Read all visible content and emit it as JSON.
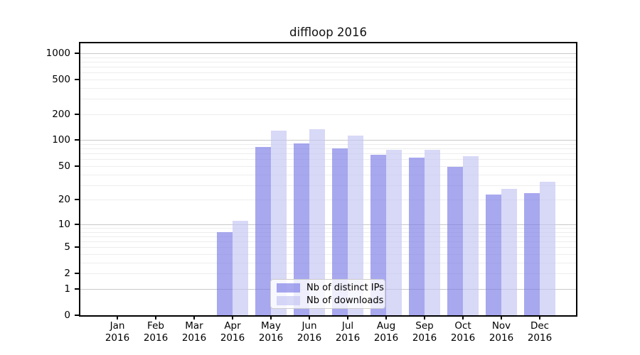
{
  "title": "diffloop 2016",
  "chart_data": {
    "type": "bar",
    "title": "diffloop 2016",
    "categories": [
      "Jan",
      "Feb",
      "Mar",
      "Apr",
      "May",
      "Jun",
      "Jul",
      "Aug",
      "Sep",
      "Oct",
      "Nov",
      "Dec"
    ],
    "category_year": "2016",
    "series": [
      {
        "name": "Nb of distinct IPs",
        "color": "rgba(121,121,230,0.65)",
        "solid_color": "#a9a9ef",
        "values": [
          0,
          0,
          0,
          8,
          84,
          92,
          81,
          68,
          63,
          49,
          23,
          24
        ]
      },
      {
        "name": "Nb of downloads",
        "color": "rgba(195,195,242,0.65)",
        "solid_color": "#d9d9f7",
        "values": [
          0,
          0,
          0,
          11,
          130,
          135,
          114,
          78,
          77,
          65,
          27,
          33
        ]
      }
    ],
    "y_ticks": [
      0,
      1,
      2,
      5,
      10,
      20,
      50,
      100,
      200,
      500,
      1000
    ],
    "y_scale": "log10(value+1)",
    "ylim": [
      0,
      1300
    ],
    "grid": {
      "major_color": "#c9c9c9",
      "minor_color": "#ededed",
      "major_values": [
        1,
        10,
        100,
        1000
      ]
    },
    "legend_position": "lower-center-inside",
    "colors": {
      "background": "#ffffff",
      "spine": "#000000",
      "text": "#000000"
    }
  }
}
